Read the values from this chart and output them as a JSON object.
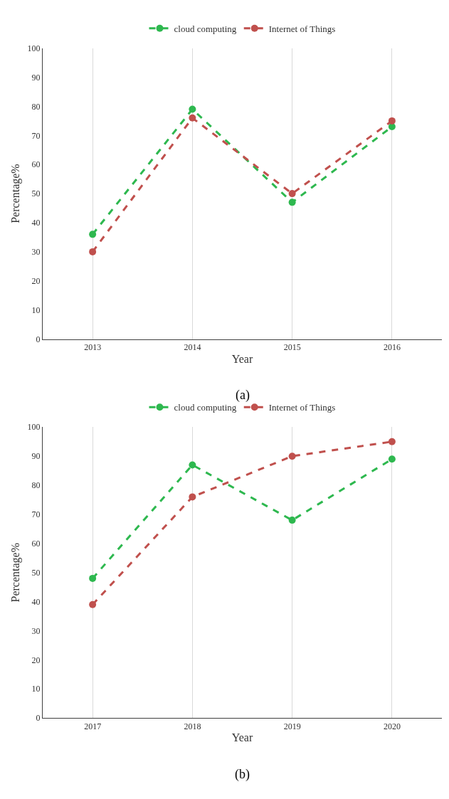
{
  "chart_data": [
    {
      "type": "line",
      "xlabel": "Year",
      "ylabel": "Percentage%",
      "categories": [
        "2013",
        "2014",
        "2015",
        "2016"
      ],
      "series": [
        {
          "name": "cloud computing",
          "color": "#2eb84f",
          "values": [
            36,
            79,
            47,
            73
          ]
        },
        {
          "name": "Internet of Things",
          "color": "#c0504d",
          "values": [
            30,
            76,
            50,
            75
          ]
        }
      ],
      "ylim": [
        0,
        100
      ],
      "yticks": [
        0,
        10,
        20,
        30,
        40,
        50,
        60,
        70,
        80,
        90,
        100
      ],
      "grid": "x",
      "legend": "top",
      "marker": "circle",
      "line_style": "dashed",
      "annotations": [
        "(a)"
      ]
    },
    {
      "type": "line",
      "xlabel": "Year",
      "ylabel": "Percentage%",
      "categories": [
        "2017",
        "2018",
        "2019",
        "2020"
      ],
      "series": [
        {
          "name": "cloud computing",
          "color": "#2eb84f",
          "values": [
            48,
            87,
            68,
            89
          ]
        },
        {
          "name": "Internet of Things",
          "color": "#c0504d",
          "values": [
            39,
            76,
            90,
            95
          ]
        }
      ],
      "ylim": [
        0,
        100
      ],
      "yticks": [
        0,
        10,
        20,
        30,
        40,
        50,
        60,
        70,
        80,
        90,
        100
      ],
      "grid": "x",
      "legend": "top",
      "marker": "circle",
      "line_style": "dashed",
      "annotations": [
        "(b)"
      ]
    }
  ]
}
